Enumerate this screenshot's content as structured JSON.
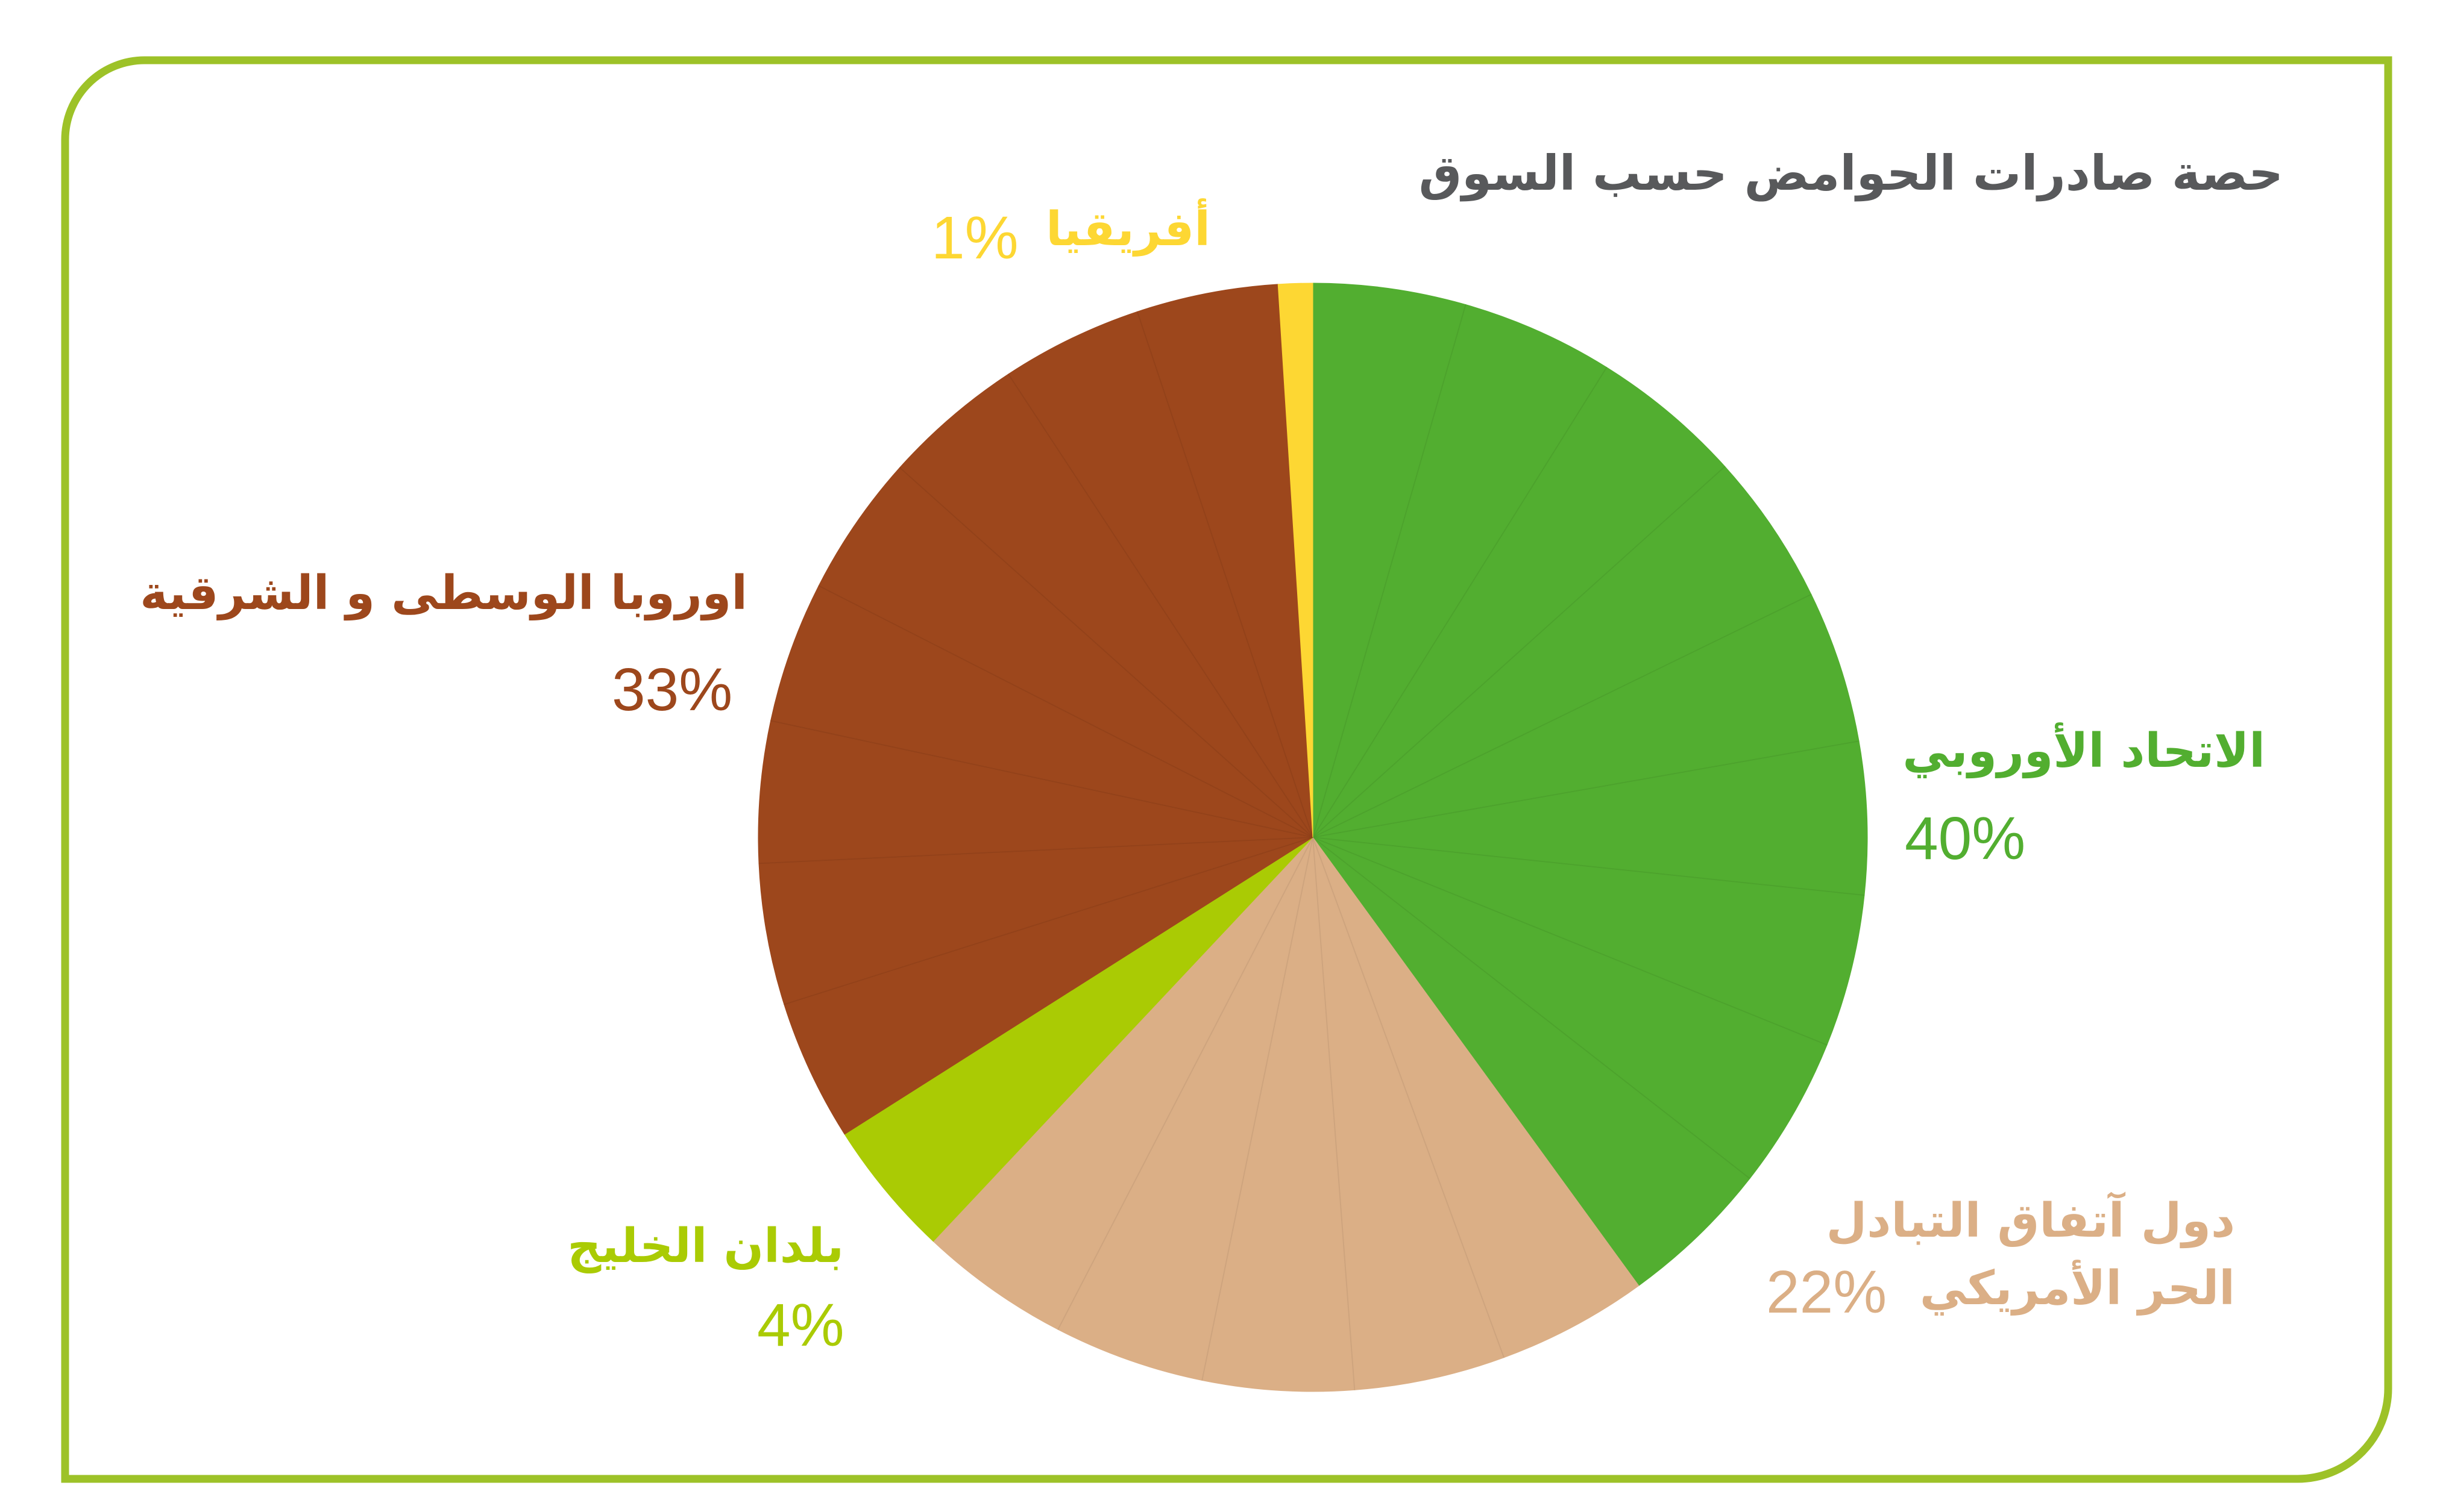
{
  "chart_data": {
    "type": "pie",
    "title": "حصة صادرات الحوامض حسب السوق",
    "series": [
      {
        "name": "الاتحاد الأوروبي",
        "value": 40,
        "label": "40%",
        "color": "#52ae30",
        "wedges": 9
      },
      {
        "name": "دول آتفاق التبادل الحر الأمريكي",
        "name_lines": [
          "دول آتفاق التبادل",
          "الحر الأمريكي"
        ],
        "value": 22,
        "label": "22%",
        "color": "#dbaf86",
        "wedges": 5
      },
      {
        "name": "بلدان الخليج",
        "value": 4,
        "label": "4%",
        "color": "#aacb04",
        "wedges": 1
      },
      {
        "name": "اوروبا الوسطى و الشرقية",
        "value": 33,
        "label": "33%",
        "color": "#9d471c",
        "wedges": 8
      },
      {
        "name": "أفريقيا",
        "value": 1,
        "label": "1%",
        "color": "#fdd733",
        "wedges": 1
      }
    ],
    "legend": "labels-around-pie"
  },
  "colors": {
    "frame_border": "#9dc228",
    "title": "#58595b",
    "slice_separator": "#ffffff"
  }
}
